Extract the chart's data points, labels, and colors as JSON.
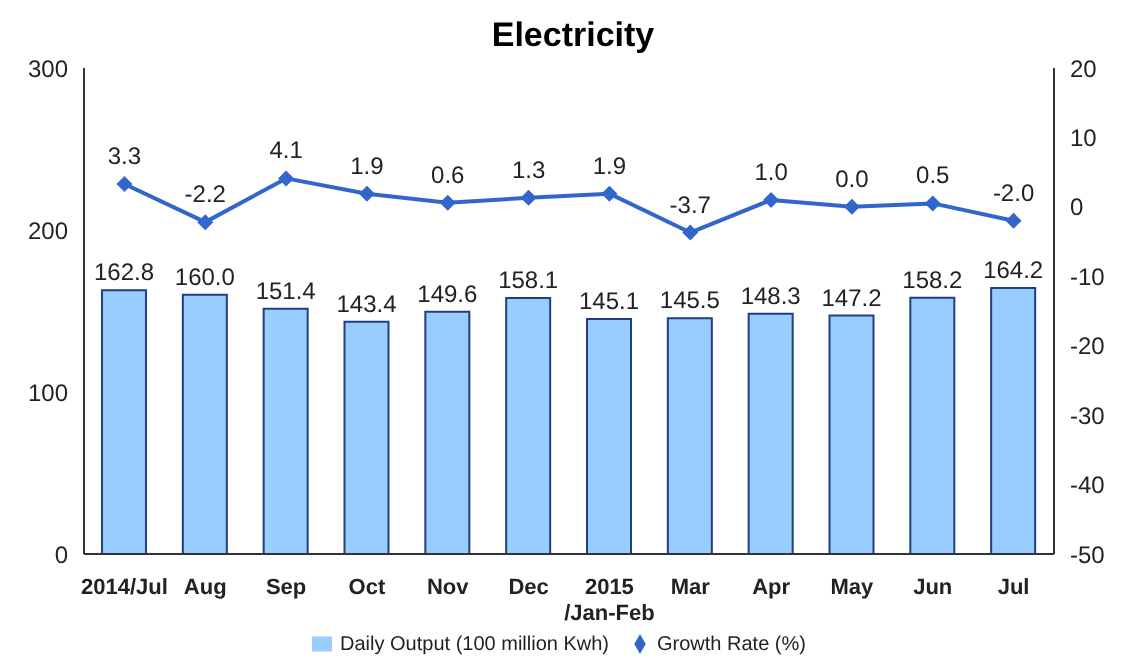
{
  "chart_data": {
    "type": "bar",
    "title": "Electricity",
    "categories": [
      "2014/Jul",
      "Aug",
      "Sep",
      "Oct",
      "Nov",
      "Dec",
      "2015\n/Jan-Feb",
      "Mar",
      "Apr",
      "May",
      "Jun",
      "Jul"
    ],
    "series": [
      {
        "name": "Daily Output (100 million Kwh)",
        "color": "#99ccff",
        "values": [
          162.8,
          160.0,
          151.4,
          143.4,
          149.6,
          158.1,
          145.1,
          145.5,
          148.3,
          147.2,
          158.2,
          164.2
        ],
        "value_labels": [
          "162.8",
          "160.0",
          "151.4",
          "143.4",
          "149.6",
          "158.1",
          "145.1",
          "145.5",
          "148.3",
          "147.2",
          "158.2",
          "164.2"
        ]
      },
      {
        "name": "Growth Rate (%)",
        "type": "line",
        "axis": "y2",
        "color": "#3366cc",
        "values": [
          3.3,
          -2.2,
          4.1,
          1.9,
          0.6,
          1.3,
          1.9,
          -3.7,
          1.0,
          0.0,
          0.5,
          -2.0
        ],
        "value_labels": [
          "3.3",
          "-2.2",
          "4.1",
          "1.9",
          "0.6",
          "1.3",
          "1.9",
          "-3.7",
          "1.0",
          "0.0",
          "0.5",
          "-2.0"
        ]
      }
    ],
    "ylim": [
      0,
      300
    ],
    "yticks": [
      0,
      100,
      200,
      300
    ],
    "y2lim": [
      -50,
      20
    ],
    "y2ticks": [
      -50,
      -40,
      -30,
      -20,
      -10,
      0,
      10,
      20
    ],
    "legend": "bottom",
    "marker": "diamond",
    "line_style": "solid"
  }
}
